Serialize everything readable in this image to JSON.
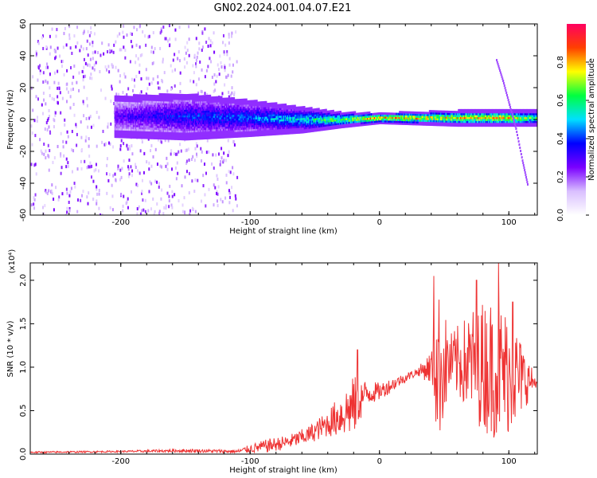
{
  "title": "GN02.2024.001.04.07.E21",
  "chart_data": [
    {
      "type": "heatmap",
      "xlabel": "Height of straight line (km)",
      "ylabel": "Frequency (Hz)",
      "xlim": [
        -270,
        122
      ],
      "ylim": [
        -60,
        60
      ],
      "x_ticks": [
        -200,
        -100,
        0,
        100
      ],
      "x_tick_labels": [
        "-200",
        "-100",
        "0",
        "100"
      ],
      "y_ticks": [
        -60,
        -40,
        -20,
        0,
        20,
        40,
        60
      ],
      "y_tick_labels": [
        "-60",
        "-40",
        "-20",
        "0",
        "20",
        "40",
        "60"
      ],
      "colorbar": {
        "label": "Normalized spectral amplitude",
        "range": [
          0,
          1
        ],
        "ticks": [
          0,
          0.2,
          0.4,
          0.6,
          0.8
        ],
        "tick_labels": [
          "0.0",
          "0.2",
          "0.4",
          "0.6",
          "0.8"
        ],
        "colors": [
          "#ffffff",
          "#d9bfff",
          "#7a00ff",
          "#0000ff",
          "#00e0ff",
          "#00ff40",
          "#ffff00",
          "#ff4000",
          "#ff0060"
        ]
      },
      "features": {
        "noise_band": {
          "x_from": -270,
          "x_to": -110,
          "y_range": [
            -60,
            60
          ],
          "level": 0.15
        },
        "signal_band": [
          {
            "x": -205,
            "center": 2,
            "half_width": 8,
            "level": 0.3
          },
          {
            "x": -150,
            "center": 2,
            "half_width": 9,
            "level": 0.4
          },
          {
            "x": -100,
            "center": 1,
            "half_width": 7,
            "level": 0.45
          },
          {
            "x": -60,
            "center": 0,
            "half_width": 5,
            "level": 0.55
          },
          {
            "x": -30,
            "center": 0,
            "half_width": 3,
            "level": 0.7
          },
          {
            "x": 0,
            "center": 1,
            "half_width": 2,
            "level": 0.85
          },
          {
            "x": 60,
            "center": 1,
            "half_width": 3,
            "level": 0.8
          },
          {
            "x": 100,
            "center": 1,
            "half_width": 3,
            "level": 0.85
          },
          {
            "x": 122,
            "center": 1,
            "half_width": 3,
            "level": 0.6
          }
        ],
        "dispersive_streak": [
          [
            90,
            38
          ],
          [
            95,
            25
          ],
          [
            100,
            10
          ],
          [
            105,
            -5
          ],
          [
            110,
            -25
          ],
          [
            114,
            -40
          ]
        ]
      }
    },
    {
      "type": "line",
      "xlabel": "Height of straight line (km)",
      "ylabel": "SNR (10 * v/v)",
      "y_scale_label": "(x10⁴)",
      "xlim": [
        -270,
        122
      ],
      "ylim": [
        0,
        2.2
      ],
      "x_ticks": [
        -200,
        -100,
        0,
        100
      ],
      "x_tick_labels": [
        "-200",
        "-100",
        "0",
        "100"
      ],
      "y_ticks": [
        0,
        0.5,
        1.0,
        1.5,
        2.0
      ],
      "y_tick_labels": [
        "0.0",
        "0.5",
        "1.0",
        "1.5",
        "2.0"
      ],
      "color": "#ee3333",
      "envelope": {
        "x": [
          -270,
          -200,
          -150,
          -110,
          -100,
          -85,
          -70,
          -55,
          -40,
          -30,
          -20,
          -10,
          0,
          10,
          20,
          30,
          40,
          45,
          55,
          65,
          75,
          85,
          95,
          105,
          115,
          122
        ],
        "y": [
          0.02,
          0.03,
          0.04,
          0.03,
          0.06,
          0.1,
          0.14,
          0.22,
          0.35,
          0.45,
          0.55,
          0.7,
          0.72,
          0.8,
          0.88,
          0.95,
          1.0,
          1.0,
          1.05,
          1.05,
          1.05,
          1.0,
          0.95,
          0.9,
          0.85,
          0.82
        ],
        "spread": [
          0.01,
          0.01,
          0.02,
          0.02,
          0.05,
          0.08,
          0.08,
          0.1,
          0.15,
          0.25,
          0.35,
          0.15,
          0.1,
          0.08,
          0.05,
          0.05,
          0.2,
          0.9,
          0.35,
          0.5,
          0.7,
          0.8,
          0.8,
          0.6,
          0.25,
          0.02
        ]
      },
      "peaks": [
        {
          "x": 42,
          "y": 2.05
        },
        {
          "x": 75,
          "y": 2.0
        },
        {
          "x": 92,
          "y": 2.2
        },
        {
          "x": 103,
          "y": 1.75
        },
        {
          "x": -17,
          "y": 1.2
        }
      ]
    }
  ]
}
